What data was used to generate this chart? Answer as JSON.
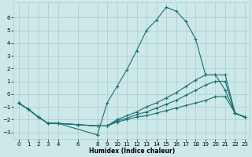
{
  "xlabel": "Humidex (Indice chaleur)",
  "background_color": "#cce8e8",
  "grid_color": "#aacccc",
  "line_color": "#1a7070",
  "xlim": [
    -0.5,
    23.5
  ],
  "ylim": [
    -3.5,
    7.2
  ],
  "xticks": [
    0,
    1,
    2,
    3,
    4,
    6,
    8,
    9,
    10,
    11,
    12,
    13,
    14,
    15,
    16,
    17,
    18,
    19,
    20,
    21,
    22,
    23
  ],
  "yticks": [
    -3,
    -2,
    -1,
    0,
    1,
    2,
    3,
    4,
    5,
    6
  ],
  "series": [
    {
      "x": [
        0,
        1,
        2,
        3,
        4,
        8,
        9,
        10,
        11,
        12,
        13,
        14,
        15,
        16,
        17,
        18,
        19,
        20,
        21,
        22,
        23
      ],
      "y": [
        -0.7,
        -1.2,
        -1.8,
        -2.3,
        -2.3,
        -3.2,
        -0.7,
        0.6,
        1.9,
        3.4,
        5.0,
        5.8,
        6.8,
        6.5,
        5.7,
        4.3,
        1.5,
        1.5,
        0.3,
        -1.5,
        -1.8
      ]
    },
    {
      "x": [
        0,
        1,
        2,
        3,
        4,
        6,
        8,
        9,
        10,
        11,
        12,
        13,
        14,
        15,
        16,
        17,
        18,
        19,
        20,
        21,
        22,
        23
      ],
      "y": [
        -0.7,
        -1.2,
        -1.8,
        -2.3,
        -2.3,
        -2.4,
        -2.5,
        -2.5,
        -2.2,
        -2.0,
        -1.8,
        -1.7,
        -1.5,
        -1.3,
        -1.1,
        -0.9,
        -0.7,
        -0.5,
        -0.2,
        -0.2,
        -1.5,
        -1.8
      ]
    },
    {
      "x": [
        0,
        1,
        2,
        3,
        4,
        6,
        8,
        9,
        10,
        11,
        12,
        13,
        14,
        15,
        16,
        17,
        18,
        19,
        20,
        21,
        22,
        23
      ],
      "y": [
        -0.7,
        -1.2,
        -1.8,
        -2.3,
        -2.3,
        -2.4,
        -2.5,
        -2.5,
        -2.1,
        -1.9,
        -1.6,
        -1.4,
        -1.1,
        -0.8,
        -0.5,
        -0.1,
        0.3,
        0.7,
        1.0,
        1.0,
        -1.5,
        -1.8
      ]
    },
    {
      "x": [
        0,
        1,
        2,
        3,
        4,
        6,
        8,
        9,
        10,
        11,
        12,
        13,
        14,
        15,
        16,
        17,
        18,
        19,
        20,
        21,
        22,
        23
      ],
      "y": [
        -0.7,
        -1.2,
        -1.8,
        -2.3,
        -2.3,
        -2.4,
        -2.5,
        -2.5,
        -2.0,
        -1.7,
        -1.4,
        -1.0,
        -0.7,
        -0.3,
        0.1,
        0.6,
        1.1,
        1.5,
        1.5,
        1.5,
        -1.5,
        -1.8
      ]
    }
  ]
}
